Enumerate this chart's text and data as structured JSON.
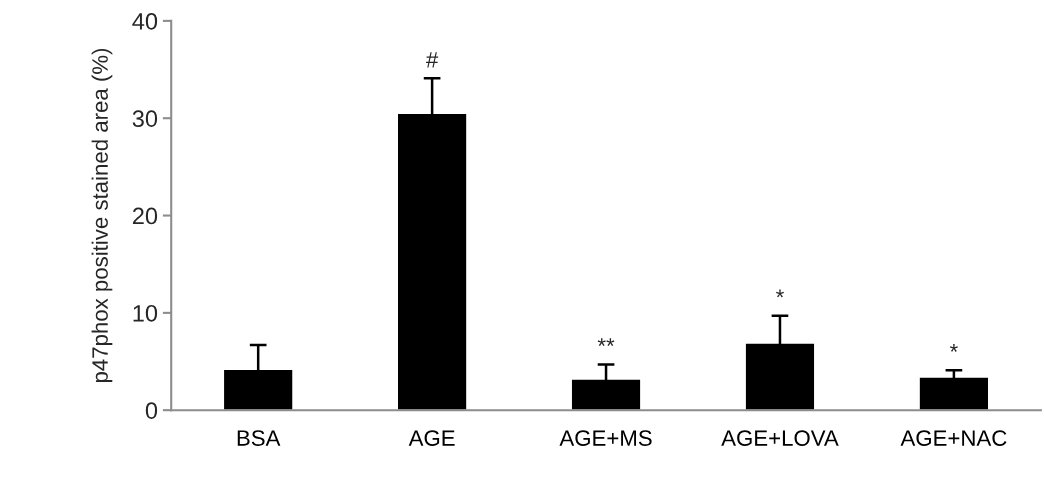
{
  "chart_data": {
    "type": "bar",
    "ylabel": "p47phox positive stained area (%)",
    "categories": [
      "BSA",
      "AGE",
      "AGE+MS",
      "AGE+LOVA",
      "AGE+NAC"
    ],
    "values": [
      4.2,
      30.5,
      3.2,
      6.9,
      3.4
    ],
    "errors": [
      2.5,
      3.6,
      1.5,
      2.8,
      0.7
    ],
    "color": "#000000",
    "value_labels": [
      null,
      "#",
      "**",
      "*",
      "*"
    ],
    "ylim": [
      0,
      40
    ],
    "yticks": [
      0,
      10,
      20,
      30,
      40
    ],
    "grid": false,
    "legend": false
  }
}
